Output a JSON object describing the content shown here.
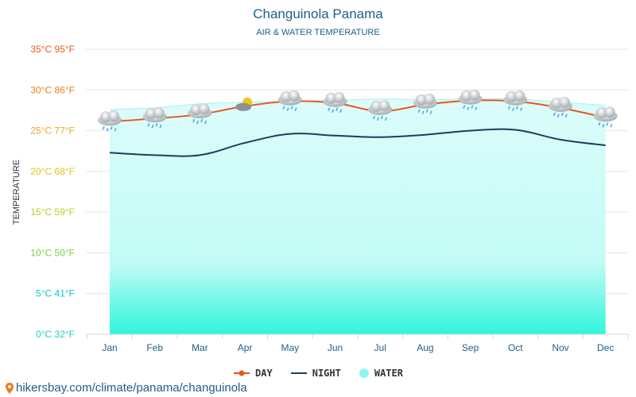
{
  "chart_data": {
    "type": "line",
    "title": "Changuinola Panama",
    "subtitle": "AIR & WATER TEMPERATURE",
    "ylabel": "TEMPERATURE",
    "categories": [
      "Jan",
      "Feb",
      "Mar",
      "Apr",
      "May",
      "Jun",
      "Jul",
      "Aug",
      "Sep",
      "Oct",
      "Nov",
      "Dec"
    ],
    "ylim": [
      0,
      35
    ],
    "yticks": [
      {
        "value": 0,
        "label": "0°C 32°F",
        "color": "#19d3c5"
      },
      {
        "value": 5,
        "label": "5°C 41°F",
        "color": "#19c0d6"
      },
      {
        "value": 10,
        "label": "10°C 50°F",
        "color": "#6fd63a"
      },
      {
        "value": 15,
        "label": "15°C 59°F",
        "color": "#a8d41f"
      },
      {
        "value": 20,
        "label": "20°C 68°F",
        "color": "#e0c21a"
      },
      {
        "value": 25,
        "label": "25°C 77°F",
        "color": "#f0a818"
      },
      {
        "value": 30,
        "label": "30°C 86°F",
        "color": "#f07d1a"
      },
      {
        "value": 35,
        "label": "35°C 95°F",
        "color": "#e85a12"
      }
    ],
    "grid": true,
    "legend_position": "bottom",
    "series": [
      {
        "name": "DAY",
        "color": "#e8561c",
        "values": [
          26.1,
          26.5,
          27.0,
          28.0,
          28.6,
          28.4,
          27.4,
          28.2,
          28.7,
          28.6,
          27.8,
          26.6
        ]
      },
      {
        "name": "NIGHT",
        "color": "#1b3f5c",
        "values": [
          22.3,
          22.0,
          22.0,
          23.5,
          24.6,
          24.4,
          24.2,
          24.5,
          25.0,
          25.1,
          23.9,
          23.2
        ]
      },
      {
        "name": "WATER",
        "color": "#8ff5ef",
        "values": [
          27.6,
          27.8,
          28.3,
          28.5,
          28.6,
          28.7,
          28.9,
          28.8,
          28.9,
          28.9,
          28.5,
          28.1
        ]
      }
    ],
    "weather_icons": [
      "cloud-rain-icon",
      "cloud-rain-icon",
      "cloud-rain-icon",
      "partly-sunny-icon",
      "cloud-rain-icon",
      "cloud-rain-icon",
      "cloud-rain-icon",
      "cloud-rain-icon",
      "cloud-rain-icon",
      "cloud-rain-icon",
      "cloud-rain-icon",
      "cloud-rain-icon"
    ]
  },
  "source": {
    "text": "hikersbay.com/climate/panama/changuinola",
    "icon": "location-pin-icon"
  }
}
